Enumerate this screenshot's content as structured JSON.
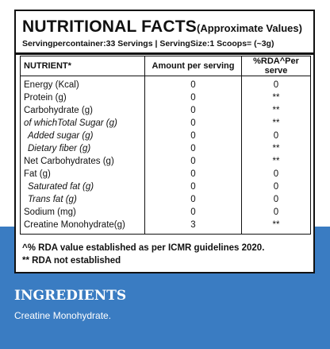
{
  "panel": {
    "title_main": "NUTRITIONAL FACTS",
    "title_sub": "(Approximate Values)",
    "serving_info": "Servingpercontainer:33 Servings | ServingSize:1 Scoops= (~3g)"
  },
  "table": {
    "headers": [
      "NUTRIENT*",
      "Amount per serving",
      "%RDA^Per serve"
    ],
    "rows": [
      {
        "name": "Energy (Kcal)",
        "amount": "0",
        "rda": "0"
      },
      {
        "name": "Protein (g)",
        "amount": "0",
        "rda": "**"
      },
      {
        "name": "Carbohydrate (g)",
        "amount": "0",
        "rda": "**"
      },
      {
        "name": "of whichTotal Sugar (g)",
        "amount": "0",
        "rda": "**"
      },
      {
        "name": "Added sugar (g)",
        "amount": "0",
        "rda": "0"
      },
      {
        "name": "Dietary fiber (g)",
        "amount": "0",
        "rda": "**"
      },
      {
        "name": "Net Carbohydrates (g)",
        "amount": "0",
        "rda": "**"
      },
      {
        "name": "Fat (g)",
        "amount": "0",
        "rda": "0"
      },
      {
        "name": "Saturated fat (g)",
        "amount": "0",
        "rda": "0"
      },
      {
        "name": "Trans fat (g)",
        "amount": "0",
        "rda": "0"
      },
      {
        "name": "Sodium (mg)",
        "amount": "0",
        "rda": "0"
      },
      {
        "name": "Creatine Monohydrate(g)",
        "amount": "3",
        "rda": "**"
      }
    ]
  },
  "footnotes": [
    "^% RDA value established as per ICMR guidelines 2020.",
    "** RDA not established"
  ],
  "ingredients": {
    "heading": "INGREDIENTS",
    "text": "Creatine Monohydrate."
  },
  "colors": {
    "band_blue": "#3a7cc2",
    "text_dark": "#111111",
    "panel_white": "#ffffff"
  }
}
